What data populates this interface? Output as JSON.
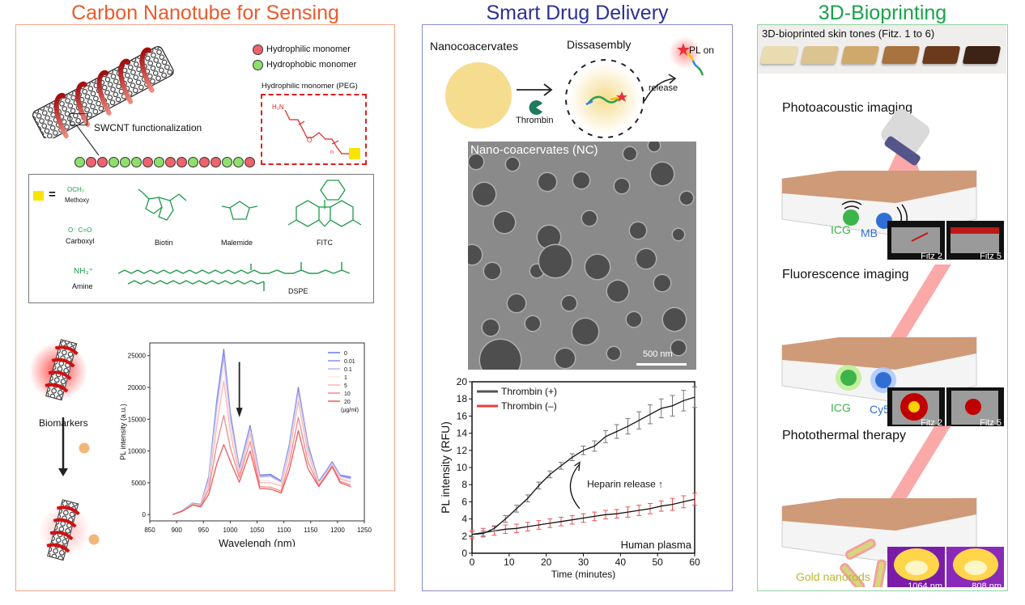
{
  "sections": {
    "sensing": {
      "title": "Carbon Nanotube for Sensing",
      "title_color": "#ea5b2c",
      "border_color": "#f4a58b",
      "legend": [
        {
          "label": "Hydrophilic monomer",
          "color": "#f0636c"
        },
        {
          "label": "Hydrophobic monomer",
          "color": "#8de06a"
        }
      ],
      "swcnt_label": "SWCNT functionalization",
      "peg_box": {
        "title": "Hydrophilic monomer (PEG)",
        "amine_label": "H₂N",
        "o_label": "O",
        "n_label": "n"
      },
      "polymer_chain": [
        "green",
        "red",
        "red",
        "green",
        "green",
        "green",
        "red",
        "green",
        "red",
        "red",
        "green",
        "red",
        "red",
        "green",
        "green",
        "red"
      ],
      "functional_groups": {
        "equals": "=",
        "items": [
          {
            "formula": "OCH₃",
            "name": "Methoxy"
          },
          {
            "formula": "O⁻ C=O",
            "name": "Carboxyl"
          },
          {
            "formula": "NH₃⁺",
            "name": "Amine"
          },
          {
            "formula": "",
            "name": "Biotin"
          },
          {
            "formula": "",
            "name": "Malemide"
          },
          {
            "formula": "",
            "name": "FITC"
          },
          {
            "formula": "",
            "name": "DSPE"
          }
        ],
        "structure_color": "#1e9a4a"
      },
      "biomarkers_label": "Biomarkers",
      "chart_title": ""
    },
    "drug_delivery": {
      "title": "Smart Drug Delivery",
      "title_color": "#2e3192",
      "border_color": "#8b8cc8",
      "schematic": {
        "nanocoacervates": "Nanocoacervates",
        "thrombin": "Thrombin",
        "disassembly": "Dissasembly",
        "release": "release",
        "pl_on": "PL on"
      },
      "tem_image": {
        "label": "Nano-coacervates (NC)",
        "scale_bar": "500 nm"
      }
    },
    "bioprinting": {
      "title": "3D-Bioprinting",
      "title_color": "#1aa24a",
      "border_color": "#8fd3a0",
      "skin_tones": {
        "label": "3D-bioprinted skin tones (Fitz. 1 to 6)",
        "colors": [
          "#e9dcb0",
          "#dcc491",
          "#cfa86c",
          "#a8733f",
          "#6b3a1c",
          "#3d2216"
        ]
      },
      "modalities": [
        {
          "title": "Photoacoustic imaging",
          "agents": [
            {
              "name": "ICG",
              "color": "#3cb44a"
            },
            {
              "name": "MB",
              "color": "#2f6fd4"
            }
          ],
          "insets": [
            "Fitz 2",
            "Fitz 5"
          ]
        },
        {
          "title": "Fluorescence imaging",
          "agents": [
            {
              "name": "ICG",
              "color": "#3cb44a"
            },
            {
              "name": "Cy5.5",
              "color": "#2f6fd4"
            }
          ],
          "insets": [
            "Fitz 2",
            "Fitz 5"
          ]
        },
        {
          "title": "Photothermal therapy",
          "agents": [
            {
              "name": "Gold nanorods",
              "color": "#b8b830"
            }
          ],
          "insets": [
            "1064 nm",
            "808 nm"
          ]
        }
      ]
    }
  },
  "chart_data": [
    {
      "type": "line",
      "title": "",
      "xlabel": "Wavelengh (nm)",
      "ylabel": "PL intensity (a.u.)",
      "xlim": [
        850,
        1250
      ],
      "ylim": [
        -1000,
        27000
      ],
      "xticks": [
        850,
        900,
        950,
        1000,
        1050,
        1100,
        1150,
        1200,
        1250
      ],
      "yticks": [
        0,
        5000,
        10000,
        15000,
        20000,
        25000
      ],
      "legend_title": "(μg/ml)",
      "legend_position": "top-right",
      "annotation": "downward arrow at ~1015 nm indicating decrease",
      "x": [
        893,
        910,
        930,
        945,
        960,
        975,
        988,
        1000,
        1017,
        1037,
        1055,
        1075,
        1095,
        1110,
        1127,
        1145,
        1165,
        1180,
        1190,
        1205,
        1225
      ],
      "series": [
        {
          "name": "0",
          "color": "#6e78e8",
          "values": [
            0,
            600,
            1800,
            1600,
            6000,
            18000,
            26000,
            16000,
            7300,
            14000,
            6200,
            6300,
            5300,
            11000,
            20000,
            11000,
            5200,
            7000,
            8300,
            6200,
            5900
          ]
        },
        {
          "name": "0.01",
          "color": "#8890ec",
          "values": [
            0,
            600,
            1750,
            1550,
            5800,
            17600,
            25600,
            15700,
            7100,
            13800,
            6100,
            6200,
            5200,
            10800,
            19700,
            10800,
            5100,
            6900,
            8200,
            6100,
            5800
          ]
        },
        {
          "name": "0.1",
          "color": "#b4b8f2",
          "values": [
            0,
            580,
            1700,
            1500,
            5600,
            17000,
            24800,
            15200,
            6900,
            13500,
            5900,
            6000,
            5100,
            10500,
            19300,
            10500,
            5000,
            6800,
            8100,
            6000,
            5600
          ]
        },
        {
          "name": "1",
          "color": "#fde8e8",
          "values": [
            0,
            560,
            1650,
            1450,
            5200,
            15500,
            23000,
            14200,
            6500,
            13000,
            5400,
            5300,
            4800,
            10000,
            18500,
            10000,
            4900,
            6600,
            7900,
            5800,
            5300
          ]
        },
        {
          "name": "5",
          "color": "#f8b8b8",
          "values": [
            0,
            540,
            1600,
            1400,
            4800,
            14000,
            21000,
            13000,
            6200,
            12800,
            5000,
            5000,
            4500,
            9600,
            17800,
            9600,
            4700,
            6500,
            7800,
            5600,
            5100
          ]
        },
        {
          "name": "10",
          "color": "#f28a8a",
          "values": [
            0,
            520,
            1550,
            1300,
            4000,
            11000,
            15600,
            10500,
            5800,
            11500,
            4400,
            4300,
            3700,
            8200,
            15300,
            8300,
            4500,
            6300,
            7600,
            5200,
            4700
          ]
        },
        {
          "name": "20",
          "color": "#ec5a5a",
          "values": [
            0,
            500,
            1500,
            1200,
            3200,
            8000,
            11000,
            8400,
            5100,
            10000,
            4100,
            4000,
            3400,
            7000,
            13200,
            7200,
            4400,
            6200,
            7500,
            5000,
            4400
          ]
        }
      ]
    },
    {
      "type": "line",
      "title": "",
      "xlabel": "Time (minutes)",
      "ylabel": "PL intensity (RFU)",
      "xlim": [
        0,
        60
      ],
      "ylim": [
        0,
        20
      ],
      "xticks": [
        0,
        10,
        20,
        30,
        40,
        50,
        60
      ],
      "yticks": [
        0,
        2,
        4,
        6,
        8,
        10,
        12,
        14,
        16,
        18,
        20
      ],
      "legend_position": "top-left",
      "annotations": [
        "Heparin release ↑",
        "Human plasma"
      ],
      "x": [
        0,
        3,
        6,
        9,
        12,
        15,
        18,
        21,
        24,
        27,
        30,
        33,
        36,
        39,
        42,
        45,
        48,
        51,
        54,
        57,
        60
      ],
      "series": [
        {
          "name": "Thrombin (+)",
          "color": "#555555",
          "values": [
            2.2,
            2.3,
            2.9,
            4.0,
            5.2,
            6.4,
            7.9,
            9.2,
            10.2,
            11.2,
            12.0,
            12.5,
            13.6,
            14.2,
            14.8,
            15.5,
            16.2,
            16.9,
            17.2,
            17.8,
            18.2
          ],
          "error": [
            0.3,
            0.3,
            0.3,
            0.4,
            0.4,
            0.4,
            0.4,
            0.4,
            0.4,
            0.4,
            0.5,
            0.6,
            0.7,
            0.8,
            0.9,
            1.0,
            1.1,
            1.1,
            1.2,
            1.2,
            1.2
          ]
        },
        {
          "name": "Thrombin (–)",
          "color": "#ee3a3a",
          "values": [
            2.2,
            2.4,
            2.6,
            2.8,
            2.9,
            3.1,
            3.3,
            3.5,
            3.7,
            3.9,
            4.1,
            4.3,
            4.5,
            4.6,
            4.8,
            5.0,
            5.2,
            5.5,
            5.7,
            6.0,
            6.3
          ],
          "error": [
            0.5,
            0.5,
            0.5,
            0.5,
            0.5,
            0.5,
            0.5,
            0.5,
            0.5,
            0.5,
            0.5,
            0.5,
            0.5,
            0.5,
            0.6,
            0.6,
            0.6,
            0.6,
            0.7,
            0.7,
            0.7
          ]
        }
      ]
    }
  ]
}
